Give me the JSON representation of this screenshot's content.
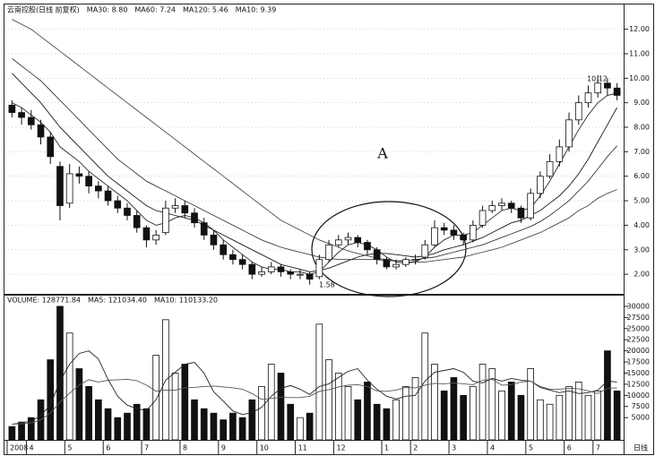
{
  "chart_data": {
    "type": "candlestick",
    "header": "云南控股(日线 前复权)",
    "categories": [
      "2008",
      null,
      "4",
      null,
      null,
      null,
      "5",
      null,
      null,
      null,
      "6",
      null,
      null,
      null,
      "7",
      null,
      null,
      null,
      "8",
      null,
      null,
      null,
      "9",
      null,
      null,
      null,
      "10",
      null,
      null,
      null,
      "11",
      null,
      null,
      null,
      "12",
      null,
      null,
      null,
      null,
      "1",
      null,
      null,
      "2",
      null,
      null,
      null,
      "3",
      null,
      null,
      null,
      "4",
      null,
      null,
      null,
      "5",
      null,
      null,
      null,
      "6",
      null,
      null,
      "7",
      null,
      null
    ],
    "x_end_label": "日线",
    "open": [
      8.9,
      8.6,
      8.4,
      8.1,
      7.6,
      6.4,
      4.9,
      6.1,
      6.0,
      5.6,
      5.4,
      5.0,
      4.7,
      4.4,
      3.9,
      3.4,
      3.7,
      4.7,
      4.8,
      4.5,
      4.1,
      3.6,
      3.2,
      2.8,
      2.6,
      2.4,
      2.0,
      2.1,
      2.3,
      2.1,
      2.0,
      2.0,
      1.9,
      2.6,
      3.2,
      3.4,
      3.5,
      3.3,
      3.0,
      2.6,
      2.3,
      2.4,
      2.6,
      2.7,
      3.2,
      3.9,
      3.8,
      3.6,
      3.4,
      4.0,
      4.6,
      4.8,
      4.9,
      4.7,
      4.3,
      5.3,
      6.0,
      6.6,
      7.2,
      8.3,
      9.0,
      9.4,
      9.8,
      9.6
    ],
    "high": [
      9.1,
      8.8,
      8.7,
      8.3,
      7.8,
      6.6,
      6.5,
      6.4,
      6.2,
      5.8,
      5.6,
      5.2,
      4.9,
      4.6,
      4.0,
      3.8,
      5.0,
      5.1,
      5.0,
      4.7,
      4.3,
      3.8,
      3.4,
      3.0,
      2.8,
      2.5,
      2.3,
      2.5,
      2.4,
      2.2,
      2.2,
      2.1,
      2.8,
      3.4,
      3.6,
      3.7,
      3.6,
      3.4,
      3.1,
      2.7,
      2.6,
      2.7,
      2.8,
      3.4,
      4.2,
      4.1,
      4.0,
      3.7,
      4.2,
      4.8,
      5.0,
      5.1,
      5.0,
      4.8,
      5.5,
      6.2,
      6.9,
      7.5,
      8.6,
      9.3,
      9.7,
      10.12,
      10.0,
      9.8
    ],
    "low": [
      8.4,
      8.1,
      7.9,
      7.3,
      6.5,
      4.2,
      4.7,
      5.7,
      5.3,
      5.1,
      4.8,
      4.5,
      4.2,
      3.7,
      3.1,
      3.2,
      3.6,
      4.5,
      4.3,
      3.9,
      3.4,
      3.0,
      2.6,
      2.4,
      2.2,
      1.8,
      1.9,
      2.0,
      1.9,
      1.8,
      1.8,
      1.58,
      1.8,
      2.5,
      3.1,
      3.2,
      3.1,
      2.8,
      2.4,
      2.2,
      2.2,
      2.3,
      2.4,
      2.6,
      3.1,
      3.6,
      3.4,
      3.2,
      3.3,
      3.9,
      4.5,
      4.6,
      4.5,
      4.1,
      4.2,
      5.1,
      5.9,
      6.4,
      7.0,
      8.1,
      8.8,
      9.2,
      9.3,
      9.1
    ],
    "close": [
      8.6,
      8.4,
      8.1,
      7.6,
      6.8,
      4.8,
      6.1,
      6.0,
      5.6,
      5.4,
      5.0,
      4.7,
      4.4,
      3.9,
      3.4,
      3.6,
      4.7,
      4.8,
      4.5,
      4.1,
      3.6,
      3.2,
      2.8,
      2.6,
      2.4,
      2.0,
      2.1,
      2.3,
      2.1,
      2.0,
      2.0,
      1.8,
      2.6,
      3.2,
      3.4,
      3.5,
      3.3,
      3.0,
      2.6,
      2.3,
      2.4,
      2.6,
      2.6,
      3.2,
      3.9,
      3.8,
      3.6,
      3.4,
      4.0,
      4.6,
      4.8,
      4.9,
      4.7,
      4.3,
      5.3,
      6.0,
      6.6,
      7.2,
      8.3,
      9.0,
      9.4,
      9.8,
      9.6,
      9.3
    ],
    "series": [
      {
        "name": "MA30: 8.80",
        "color": "#1a1a1a",
        "values": [
          10.2,
          9.8,
          9.4,
          9.0,
          8.5,
          8.0,
          7.6,
          7.2,
          6.8,
          6.4,
          6.0,
          5.7,
          5.4,
          5.1,
          4.8,
          4.6,
          4.5,
          4.4,
          4.3,
          4.2,
          4.0,
          3.8,
          3.6,
          3.4,
          3.2,
          3.0,
          2.8,
          2.6,
          2.4,
          2.3,
          2.2,
          2.1,
          2.15,
          2.25,
          2.4,
          2.55,
          2.7,
          2.8,
          2.85,
          2.85,
          2.8,
          2.75,
          2.7,
          2.75,
          2.85,
          3.0,
          3.1,
          3.2,
          3.35,
          3.5,
          3.7,
          3.9,
          4.1,
          4.2,
          4.4,
          4.6,
          4.9,
          5.2,
          5.6,
          6.1,
          6.7,
          7.4,
          8.1,
          8.8
        ]
      },
      {
        "name": "MA60: 7.24",
        "color": "#3a3a3a",
        "values": [
          10.8,
          10.5,
          10.2,
          9.9,
          9.5,
          9.1,
          8.7,
          8.3,
          7.9,
          7.5,
          7.1,
          6.7,
          6.4,
          6.1,
          5.8,
          5.6,
          5.4,
          5.2,
          5.0,
          4.8,
          4.6,
          4.4,
          4.2,
          4.0,
          3.8,
          3.6,
          3.4,
          3.25,
          3.1,
          3.0,
          2.9,
          2.8,
          2.7,
          2.65,
          2.6,
          2.6,
          2.6,
          2.6,
          2.6,
          2.55,
          2.55,
          2.55,
          2.6,
          2.65,
          2.7,
          2.8,
          2.9,
          3.0,
          3.1,
          3.2,
          3.35,
          3.5,
          3.65,
          3.8,
          3.95,
          4.15,
          4.4,
          4.7,
          5.0,
          5.4,
          5.8,
          6.3,
          6.8,
          7.24
        ]
      },
      {
        "name": "MA120: 5.46",
        "color": "#4a4a4a",
        "values": [
          12.4,
          12.2,
          12.0,
          11.7,
          11.4,
          11.1,
          10.8,
          10.5,
          10.2,
          9.9,
          9.6,
          9.3,
          9.0,
          8.7,
          8.4,
          8.1,
          7.8,
          7.5,
          7.2,
          6.9,
          6.6,
          6.3,
          6.0,
          5.7,
          5.4,
          5.1,
          4.8,
          4.5,
          4.2,
          4.0,
          3.8,
          3.6,
          3.4,
          3.25,
          3.1,
          2.95,
          2.85,
          2.75,
          2.65,
          2.6,
          2.55,
          2.5,
          2.5,
          2.5,
          2.55,
          2.6,
          2.65,
          2.7,
          2.8,
          2.9,
          3.0,
          3.1,
          3.25,
          3.4,
          3.55,
          3.7,
          3.9,
          4.1,
          4.3,
          4.6,
          4.8,
          5.1,
          5.3,
          5.46
        ]
      },
      {
        "name": "MA10: 9.39",
        "color": "#2a2a2a",
        "values": [
          9.0,
          8.8,
          8.5,
          8.2,
          7.8,
          7.2,
          6.9,
          6.6,
          6.2,
          5.9,
          5.6,
          5.3,
          5.0,
          4.6,
          4.2,
          4.0,
          4.1,
          4.3,
          4.4,
          4.3,
          4.1,
          3.8,
          3.4,
          3.1,
          2.8,
          2.5,
          2.3,
          2.2,
          2.2,
          2.1,
          2.1,
          2.0,
          2.1,
          2.5,
          2.9,
          3.2,
          3.3,
          3.2,
          3.0,
          2.7,
          2.5,
          2.45,
          2.5,
          2.7,
          3.1,
          3.4,
          3.6,
          3.6,
          3.7,
          4.0,
          4.3,
          4.6,
          4.7,
          4.6,
          4.7,
          5.2,
          5.8,
          6.5,
          7.2,
          7.9,
          8.5,
          9.0,
          9.3,
          9.39
        ]
      }
    ],
    "ylim": [
      1.2,
      12.9
    ],
    "yticks": [
      {
        "value": 2,
        "label": "2.00"
      },
      {
        "value": 3,
        "label": "3.00"
      },
      {
        "value": 4,
        "label": "4.00"
      },
      {
        "value": 5,
        "label": "5.00"
      },
      {
        "value": 6,
        "label": "6.00"
      },
      {
        "value": 7,
        "label": "7.00"
      },
      {
        "value": 8,
        "label": "8.00"
      },
      {
        "value": 9,
        "label": "9.00"
      },
      {
        "value": 10,
        "label": "10.00"
      },
      {
        "value": 11,
        "label": "11.00"
      },
      {
        "value": 12,
        "label": "12.00"
      }
    ],
    "grid": true,
    "annotations": {
      "center": "A",
      "high": "10.12",
      "low": "1.58"
    },
    "volume": {
      "type": "bar",
      "name": "VOLUME: 128771.84",
      "color": "#111111",
      "values": [
        3000,
        4000,
        5000,
        9000,
        18000,
        30000,
        24000,
        16000,
        12000,
        9000,
        7000,
        5000,
        6000,
        8000,
        7000,
        19000,
        27000,
        15000,
        17000,
        9000,
        7000,
        6000,
        4500,
        6000,
        5000,
        9000,
        12000,
        17000,
        15000,
        8000,
        5000,
        6000,
        26000,
        18000,
        15000,
        12000,
        9000,
        13000,
        8000,
        7000,
        9000,
        12000,
        14000,
        24000,
        17000,
        11000,
        14000,
        10000,
        12000,
        17000,
        16000,
        11000,
        13000,
        10000,
        16000,
        9000,
        8000,
        10000,
        12000,
        13000,
        10000,
        11000,
        20000,
        11000
      ],
      "series": [
        {
          "name": "MA5: 121034.40",
          "color": "#222222",
          "values": [
            3500,
            3800,
            4200,
            5500,
            7800,
            13200,
            17000,
            19400,
            20000,
            18200,
            13600,
            9800,
            7800,
            7000,
            6600,
            9000,
            13400,
            15200,
            17000,
            17400,
            15000,
            10800,
            8700,
            6500,
            5700,
            6100,
            7300,
            9800,
            11600,
            12200,
            11400,
            10200,
            12000,
            12600,
            14000,
            15400,
            16000,
            13400,
            11400,
            9800,
            9200,
            9800,
            10000,
            13200,
            15200,
            15600,
            16000,
            15200,
            13200,
            12800,
            13800,
            13200,
            13800,
            13400,
            13200,
            11800,
            11200,
            10600,
            11000,
            10400,
            10600,
            11200,
            13200,
            13000
          ]
        },
        {
          "name": "MA10: 110133.20",
          "color": "#555555",
          "values": [
            3500,
            3600,
            3800,
            4500,
            6000,
            8500,
            10500,
            12300,
            13500,
            13000,
            13400,
            13500,
            13600,
            13300,
            12300,
            10900,
            11200,
            11200,
            11700,
            11800,
            12000,
            12100,
            11900,
            11700,
            11400,
            10400,
            9100,
            9300,
            9600,
            9500,
            9500,
            9800,
            10900,
            11300,
            11900,
            12300,
            12400,
            12000,
            11000,
            10900,
            11200,
            11800,
            11700,
            12300,
            12700,
            12600,
            12800,
            12600,
            12400,
            13400,
            13600,
            12300,
            12400,
            13000,
            13200,
            12000,
            11400,
            11400,
            11600,
            11500,
            11000,
            10400,
            11600,
            11700
          ]
        }
      ],
      "ylim": [
        0,
        32000
      ],
      "yticks": [
        5000,
        7500,
        10000,
        12500,
        15000,
        17500,
        20000,
        22500,
        25000,
        27500,
        30000
      ]
    }
  }
}
